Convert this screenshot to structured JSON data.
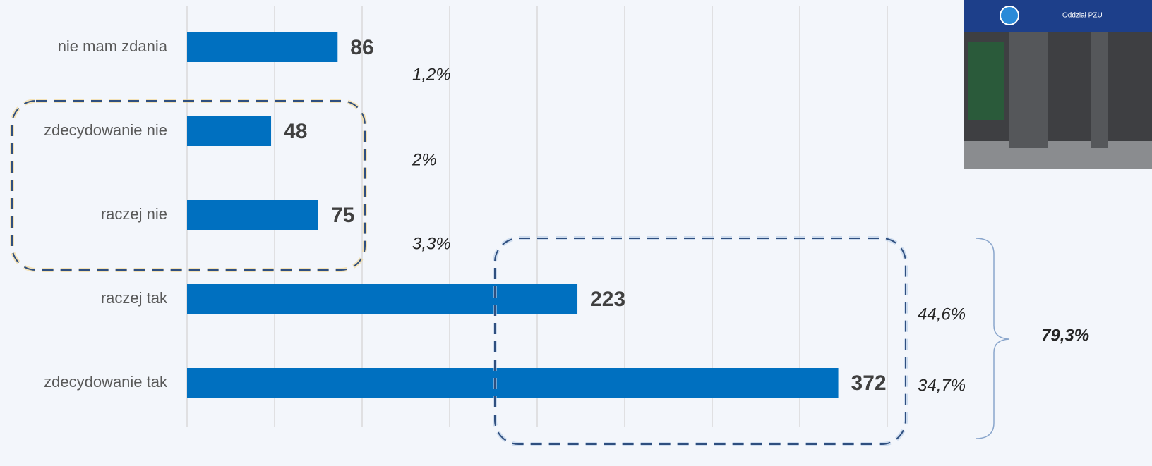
{
  "chart_data": {
    "type": "barh",
    "categories": [
      "nie mam zdania",
      "zdecydowanie nie",
      "raczej nie",
      "raczej tak",
      "zdecydowanie tak"
    ],
    "values": [
      86,
      48,
      75,
      223,
      372
    ],
    "color": "#0070c0",
    "xlim": [
      0,
      400
    ],
    "xticks": [
      0,
      50,
      100,
      150,
      200,
      250,
      300,
      350,
      400
    ],
    "grid": true,
    "annotations": [
      "1,2%",
      "2%",
      "3,3%",
      "44,6%",
      "34,7%",
      "79,3%"
    ],
    "photo_caption": "Oddział PZU"
  }
}
